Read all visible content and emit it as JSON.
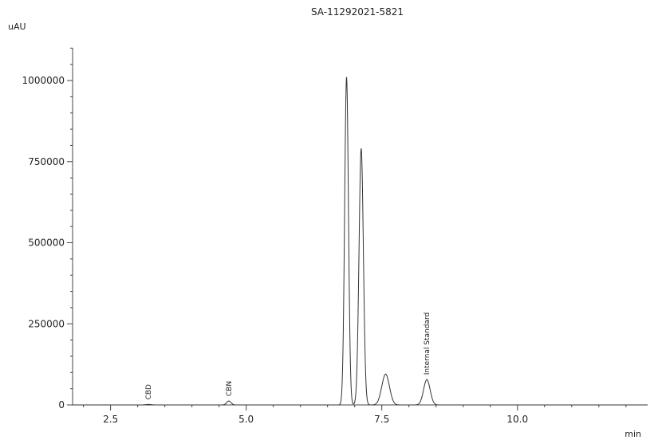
{
  "chart_data": {
    "type": "line",
    "title": "SA-11292021-5821",
    "ylabel": "uAU",
    "xlabel": "min",
    "xlim": [
      1.8,
      12.4
    ],
    "ylim": [
      0,
      1150000
    ],
    "x_ticks": [
      2.5,
      5.0,
      7.5,
      10.0
    ],
    "x_tick_labels": [
      "2.5",
      "5.0",
      "7.5",
      "10.0"
    ],
    "y_ticks": [
      0,
      250000,
      500000,
      750000,
      1000000
    ],
    "y_tick_labels": [
      "0",
      "250000",
      "500000",
      "750000",
      "1000000"
    ],
    "grid": false,
    "line_color": "#333333",
    "series": [
      {
        "peaks": [
          {
            "rt": 3.2,
            "height": 1500,
            "width": 0.05
          },
          {
            "rt": 4.68,
            "height": 12000,
            "width": 0.04
          },
          {
            "rt": 6.85,
            "height": 1010000,
            "width": 0.035
          },
          {
            "rt": 7.12,
            "height": 790000,
            "width": 0.04
          },
          {
            "rt": 7.57,
            "height": 95000,
            "width": 0.07
          },
          {
            "rt": 8.33,
            "height": 78000,
            "width": 0.06
          }
        ]
      }
    ],
    "annotations": [
      {
        "text": "CBD",
        "x": 3.2,
        "y": 1500
      },
      {
        "text": "CBN",
        "x": 4.68,
        "y": 12000
      },
      {
        "text": "Internal Standard",
        "x": 8.33,
        "y": 78000
      }
    ]
  }
}
